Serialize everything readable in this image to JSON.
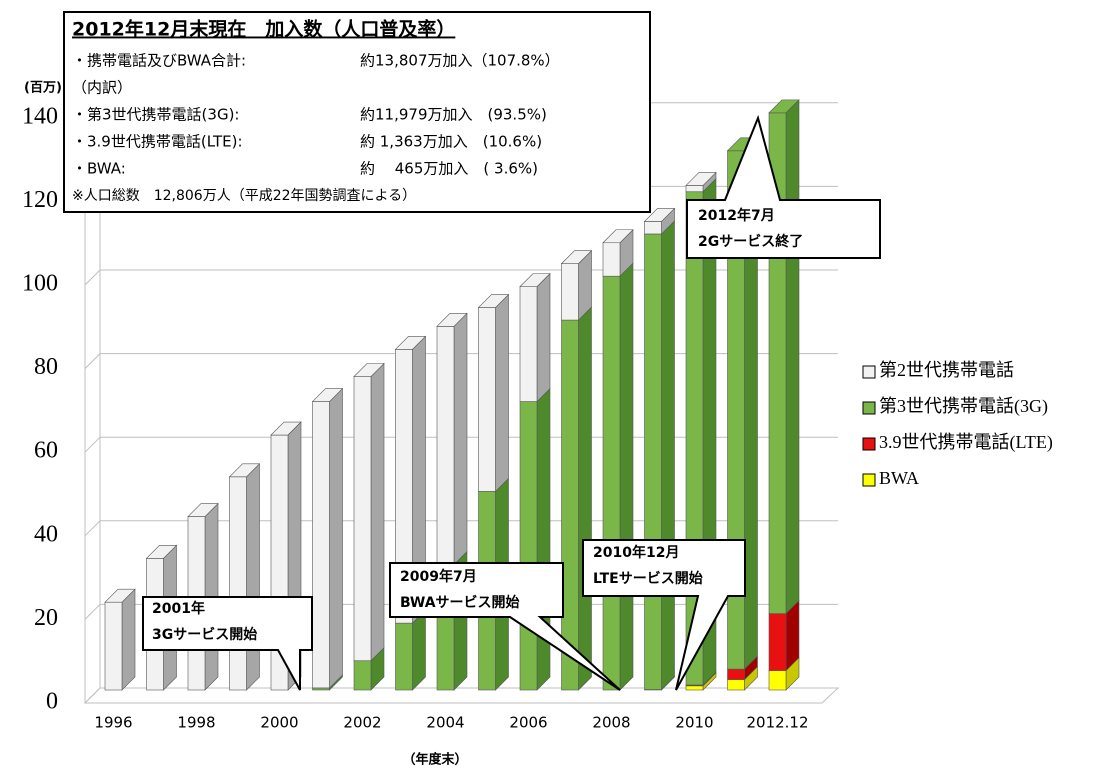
{
  "chart_data": {
    "type": "bar3d_stacked",
    "y_axis_label": "(百万)",
    "x_axis_label": "（年度末）",
    "categories": [
      "1996",
      null,
      "1998",
      null,
      "2000",
      null,
      "2002",
      null,
      "2004",
      null,
      "2006",
      null,
      "2008",
      null,
      "2010",
      null,
      "2012.12"
    ],
    "series": [
      {
        "name": "第2世代携帯電話",
        "color": "#f2f2f2",
        "side": "#a6a6a6",
        "values": [
          21,
          31.5,
          41.5,
          51,
          61,
          68.5,
          68,
          65.5,
          57,
          44,
          27.5,
          13.5,
          8,
          3,
          1.5,
          0,
          0
        ]
      },
      {
        "name": "第3世代携帯電話(3G)",
        "color": "#7ab648",
        "side": "#4e8a2c",
        "values": [
          0,
          0,
          0,
          0,
          0,
          0.5,
          7,
          16,
          30,
          47.5,
          69,
          88.5,
          99,
          109,
          118,
          124,
          119.79
        ]
      },
      {
        "name": "3.9世代携帯電話(LTE)",
        "color": "#e81010",
        "side": "#a00000",
        "values": [
          0,
          0,
          0,
          0,
          0,
          0,
          0,
          0,
          0,
          0,
          0,
          0,
          0,
          0,
          0.2,
          2.5,
          13.63
        ]
      },
      {
        "name": "BWA",
        "color": "#ffff00",
        "side": "#c8c800",
        "values": [
          0,
          0,
          0,
          0,
          0,
          0,
          0,
          0,
          0,
          0,
          0,
          0,
          0,
          0.1,
          1,
          2.5,
          4.65
        ]
      }
    ],
    "ylim": [
      0,
      140
    ],
    "yticks": [
      0,
      20,
      40,
      60,
      80,
      100,
      120,
      140
    ],
    "grid": true,
    "legend": "right",
    "info_box": {
      "title": "2012年12月末現在　加入数（人口普及率）",
      "rows": [
        [
          "・携帯電話及びBWA合計:",
          "約13,807万加入（107.8%）"
        ],
        [
          "（内訳）",
          ""
        ],
        [
          "・第3世代携帯電話(3G):",
          "約11,979万加入　(93.5%)"
        ],
        [
          "・3.9世代携帯電話(LTE):",
          "約 1,363万加入　(10.6%)"
        ],
        [
          "・BWA:",
          "約　 465万加入　( 3.6%)"
        ]
      ],
      "note": "※人口総数　12,806万人（平成22年国勢調査による）"
    },
    "annotations": [
      {
        "lines": [
          "2001年",
          "3Gサービス開始"
        ]
      },
      {
        "lines": [
          "2009年7月",
          "BWAサービス開始"
        ]
      },
      {
        "lines": [
          "2010年12月",
          "LTEサービス開始"
        ]
      },
      {
        "lines": [
          "2012年7月",
          "2Gサービス終了"
        ]
      }
    ]
  }
}
